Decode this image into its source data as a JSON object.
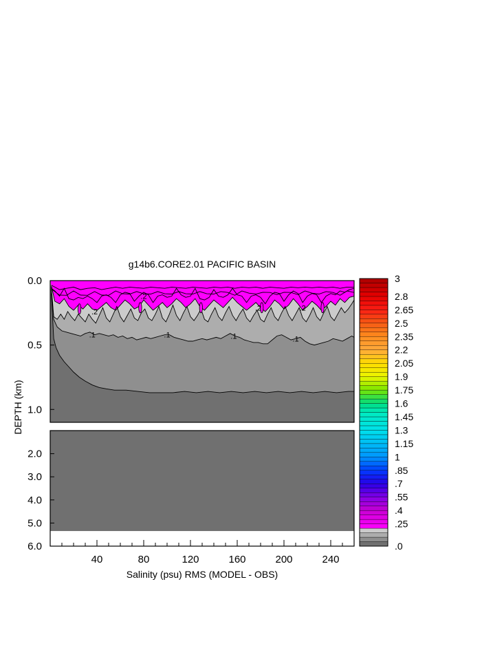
{
  "chart_data": {
    "type": "heatmap",
    "title": "g14b6.CORE2.01 PACIFIC BASIN",
    "xlabel": "Salinity (psu) RMS (MODEL - OBS)",
    "ylabel": "DEPTH (km)",
    "xlim": [
      0,
      260
    ],
    "x_ticks": [
      "40",
      "80",
      "120",
      "160",
      "200",
      "240"
    ],
    "x_tick_values": [
      40,
      80,
      120,
      160,
      200,
      240
    ],
    "upper_panel": {
      "ylim": [
        0.0,
        1.1
      ],
      "y_ticks": [
        "0.0",
        "0.5",
        "1.0"
      ],
      "y_tick_values": [
        0.0,
        0.5,
        1.0
      ]
    },
    "lower_panel": {
      "ylim": [
        1.0,
        6.0
      ],
      "y_ticks": [
        "2.0",
        "3.0",
        "4.0",
        "5.0",
        "6.0"
      ],
      "y_tick_values": [
        2.0,
        3.0,
        4.0,
        5.0,
        6.0
      ],
      "bottom_depth": 5.35
    },
    "contour_labels": [
      {
        "text": ".2",
        "x": 38,
        "depth": 0.24
      },
      {
        "text": ".2",
        "x": 80,
        "depth": 0.12
      },
      {
        "text": ".2",
        "x": 178,
        "depth": 0.21
      },
      {
        "text": ".2",
        "x": 216,
        "depth": 0.21
      },
      {
        "text": ".1",
        "x": 36,
        "depth": 0.42
      },
      {
        "text": ".1",
        "x": 100,
        "depth": 0.42
      },
      {
        "text": ".1",
        "x": 157,
        "depth": 0.43
      },
      {
        "text": ".1",
        "x": 210,
        "depth": 0.45
      }
    ],
    "contour_levels": {
      "c04": [
        [
          1,
          0.035
        ],
        [
          8,
          0.07
        ],
        [
          14,
          0.06
        ],
        [
          20,
          0.05
        ],
        [
          26,
          0.07
        ],
        [
          32,
          0.06
        ],
        [
          38,
          0.055
        ],
        [
          44,
          0.07
        ],
        [
          50,
          0.06
        ],
        [
          56,
          0.05
        ],
        [
          62,
          0.06
        ],
        [
          68,
          0.05
        ],
        [
          74,
          0.055
        ],
        [
          80,
          0.06
        ],
        [
          86,
          0.05
        ],
        [
          92,
          0.055
        ],
        [
          98,
          0.06
        ],
        [
          104,
          0.05
        ],
        [
          110,
          0.055
        ],
        [
          116,
          0.06
        ],
        [
          122,
          0.05
        ],
        [
          128,
          0.055
        ],
        [
          134,
          0.06
        ],
        [
          140,
          0.05
        ],
        [
          146,
          0.055
        ],
        [
          152,
          0.05
        ],
        [
          158,
          0.06
        ],
        [
          164,
          0.05
        ],
        [
          170,
          0.055
        ],
        [
          176,
          0.05
        ],
        [
          182,
          0.06
        ],
        [
          188,
          0.05
        ],
        [
          194,
          0.055
        ],
        [
          200,
          0.06
        ],
        [
          206,
          0.05
        ],
        [
          212,
          0.055
        ],
        [
          218,
          0.05
        ],
        [
          224,
          0.055
        ],
        [
          230,
          0.05
        ],
        [
          236,
          0.055
        ],
        [
          242,
          0.05
        ],
        [
          248,
          0.06
        ],
        [
          254,
          0.05
        ],
        [
          260,
          0.05
        ]
      ],
      "c02": [
        [
          1,
          0.04
        ],
        [
          4,
          0.16
        ],
        [
          8,
          0.18
        ],
        [
          12,
          0.14
        ],
        [
          16,
          0.2
        ],
        [
          20,
          0.23
        ],
        [
          24,
          0.19
        ],
        [
          28,
          0.22
        ],
        [
          32,
          0.18
        ],
        [
          36,
          0.22
        ],
        [
          40,
          0.23
        ],
        [
          44,
          0.2
        ],
        [
          48,
          0.17
        ],
        [
          52,
          0.21
        ],
        [
          56,
          0.23
        ],
        [
          60,
          0.19
        ],
        [
          64,
          0.15
        ],
        [
          68,
          0.18
        ],
        [
          72,
          0.22
        ],
        [
          76,
          0.2
        ],
        [
          80,
          0.15
        ],
        [
          84,
          0.19
        ],
        [
          88,
          0.23
        ],
        [
          92,
          0.2
        ],
        [
          96,
          0.17
        ],
        [
          100,
          0.21
        ],
        [
          104,
          0.18
        ],
        [
          108,
          0.14
        ],
        [
          112,
          0.17
        ],
        [
          116,
          0.21
        ],
        [
          120,
          0.18
        ],
        [
          124,
          0.14
        ],
        [
          128,
          0.2
        ],
        [
          132,
          0.23
        ],
        [
          136,
          0.19
        ],
        [
          140,
          0.15
        ],
        [
          144,
          0.18
        ],
        [
          148,
          0.21
        ],
        [
          152,
          0.17
        ],
        [
          156,
          0.13
        ],
        [
          160,
          0.17
        ],
        [
          164,
          0.2
        ],
        [
          168,
          0.23
        ],
        [
          172,
          0.2
        ],
        [
          176,
          0.17
        ],
        [
          180,
          0.21
        ],
        [
          184,
          0.24
        ],
        [
          188,
          0.2
        ],
        [
          192,
          0.15
        ],
        [
          196,
          0.18
        ],
        [
          200,
          0.22
        ],
        [
          204,
          0.19
        ],
        [
          208,
          0.14
        ],
        [
          212,
          0.18
        ],
        [
          216,
          0.23
        ],
        [
          220,
          0.2
        ],
        [
          224,
          0.16
        ],
        [
          228,
          0.19
        ],
        [
          232,
          0.23
        ],
        [
          236,
          0.2
        ],
        [
          240,
          0.16
        ],
        [
          244,
          0.19
        ],
        [
          248,
          0.14
        ],
        [
          252,
          0.17
        ],
        [
          256,
          0.13
        ],
        [
          260,
          0.12
        ]
      ],
      "c015": [
        [
          1,
          0.05
        ],
        [
          3,
          0.28
        ],
        [
          6,
          0.3
        ],
        [
          9,
          0.26
        ],
        [
          12,
          0.3
        ],
        [
          15,
          0.24
        ],
        [
          18,
          0.28
        ],
        [
          21,
          0.31
        ],
        [
          24,
          0.26
        ],
        [
          27,
          0.29
        ],
        [
          30,
          0.32
        ],
        [
          33,
          0.26
        ],
        [
          36,
          0.3
        ],
        [
          39,
          0.33
        ],
        [
          42,
          0.27
        ],
        [
          45,
          0.21
        ],
        [
          48,
          0.29
        ],
        [
          51,
          0.32
        ],
        [
          54,
          0.26
        ],
        [
          57,
          0.2
        ],
        [
          60,
          0.28
        ],
        [
          63,
          0.32
        ],
        [
          66,
          0.27
        ],
        [
          69,
          0.22
        ],
        [
          72,
          0.29
        ],
        [
          75,
          0.31
        ],
        [
          78,
          0.25
        ],
        [
          81,
          0.22
        ],
        [
          84,
          0.29
        ],
        [
          87,
          0.31
        ],
        [
          90,
          0.26
        ],
        [
          93,
          0.2
        ],
        [
          96,
          0.29
        ],
        [
          99,
          0.32
        ],
        [
          102,
          0.26
        ],
        [
          105,
          0.19
        ],
        [
          108,
          0.27
        ],
        [
          111,
          0.31
        ],
        [
          114,
          0.25
        ],
        [
          117,
          0.2
        ],
        [
          120,
          0.28
        ],
        [
          123,
          0.31
        ],
        [
          126,
          0.27
        ],
        [
          129,
          0.22
        ],
        [
          132,
          0.3
        ],
        [
          135,
          0.32
        ],
        [
          138,
          0.26
        ],
        [
          141,
          0.21
        ],
        [
          144,
          0.28
        ],
        [
          147,
          0.31
        ],
        [
          150,
          0.25
        ],
        [
          153,
          0.2
        ],
        [
          156,
          0.27
        ],
        [
          159,
          0.31
        ],
        [
          162,
          0.26
        ],
        [
          165,
          0.22
        ],
        [
          168,
          0.29
        ],
        [
          171,
          0.32
        ],
        [
          174,
          0.27
        ],
        [
          177,
          0.23
        ],
        [
          180,
          0.3
        ],
        [
          183,
          0.32
        ],
        [
          186,
          0.26
        ],
        [
          189,
          0.21
        ],
        [
          192,
          0.28
        ],
        [
          195,
          0.31
        ],
        [
          198,
          0.25
        ],
        [
          201,
          0.2
        ],
        [
          204,
          0.27
        ],
        [
          207,
          0.31
        ],
        [
          210,
          0.26
        ],
        [
          213,
          0.21
        ],
        [
          216,
          0.29
        ],
        [
          219,
          0.32
        ],
        [
          222,
          0.27
        ],
        [
          225,
          0.21
        ],
        [
          228,
          0.28
        ],
        [
          231,
          0.31
        ],
        [
          234,
          0.25
        ],
        [
          237,
          0.2
        ],
        [
          240,
          0.28
        ],
        [
          243,
          0.31
        ],
        [
          246,
          0.26
        ],
        [
          249,
          0.21
        ],
        [
          252,
          0.25
        ],
        [
          255,
          0.22
        ],
        [
          258,
          0.18
        ],
        [
          260,
          0.15
        ]
      ],
      "c01": [
        [
          1,
          0.07
        ],
        [
          3,
          0.3
        ],
        [
          6,
          0.36
        ],
        [
          10,
          0.39
        ],
        [
          14,
          0.4
        ],
        [
          18,
          0.41
        ],
        [
          22,
          0.42
        ],
        [
          26,
          0.43
        ],
        [
          30,
          0.41
        ],
        [
          34,
          0.4
        ],
        [
          38,
          0.42
        ],
        [
          42,
          0.41
        ],
        [
          46,
          0.42
        ],
        [
          50,
          0.43
        ],
        [
          54,
          0.42
        ],
        [
          58,
          0.44
        ],
        [
          62,
          0.43
        ],
        [
          66,
          0.45
        ],
        [
          70,
          0.44
        ],
        [
          74,
          0.46
        ],
        [
          78,
          0.45
        ],
        [
          82,
          0.44
        ],
        [
          86,
          0.45
        ],
        [
          90,
          0.44
        ],
        [
          94,
          0.43
        ],
        [
          98,
          0.42
        ],
        [
          102,
          0.42
        ],
        [
          106,
          0.44
        ],
        [
          110,
          0.45
        ],
        [
          114,
          0.46
        ],
        [
          118,
          0.47
        ],
        [
          122,
          0.47
        ],
        [
          126,
          0.46
        ],
        [
          130,
          0.45
        ],
        [
          134,
          0.46
        ],
        [
          138,
          0.45
        ],
        [
          142,
          0.44
        ],
        [
          146,
          0.45
        ],
        [
          150,
          0.43
        ],
        [
          154,
          0.41
        ],
        [
          158,
          0.43
        ],
        [
          162,
          0.44
        ],
        [
          166,
          0.46
        ],
        [
          170,
          0.47
        ],
        [
          174,
          0.48
        ],
        [
          178,
          0.48
        ],
        [
          182,
          0.49
        ],
        [
          186,
          0.49
        ],
        [
          190,
          0.46
        ],
        [
          194,
          0.43
        ],
        [
          198,
          0.42
        ],
        [
          202,
          0.44
        ],
        [
          206,
          0.46
        ],
        [
          210,
          0.45
        ],
        [
          214,
          0.44
        ],
        [
          218,
          0.47
        ],
        [
          222,
          0.49
        ],
        [
          226,
          0.5
        ],
        [
          230,
          0.49
        ],
        [
          234,
          0.48
        ],
        [
          238,
          0.47
        ],
        [
          242,
          0.45
        ],
        [
          246,
          0.46
        ],
        [
          250,
          0.47
        ],
        [
          254,
          0.45
        ],
        [
          258,
          0.43
        ],
        [
          260,
          0.44
        ]
      ],
      "c005": [
        [
          1,
          0.1
        ],
        [
          3,
          0.45
        ],
        [
          5,
          0.52
        ],
        [
          8,
          0.58
        ],
        [
          12,
          0.63
        ],
        [
          16,
          0.67
        ],
        [
          20,
          0.71
        ],
        [
          25,
          0.75
        ],
        [
          30,
          0.78
        ],
        [
          36,
          0.81
        ],
        [
          42,
          0.83
        ],
        [
          48,
          0.84
        ],
        [
          55,
          0.85
        ],
        [
          65,
          0.85
        ],
        [
          75,
          0.86
        ],
        [
          85,
          0.87
        ],
        [
          95,
          0.87
        ],
        [
          105,
          0.87
        ],
        [
          115,
          0.86
        ],
        [
          125,
          0.87
        ],
        [
          135,
          0.86
        ],
        [
          145,
          0.87
        ],
        [
          155,
          0.86
        ],
        [
          165,
          0.87
        ],
        [
          175,
          0.86
        ],
        [
          185,
          0.87
        ],
        [
          195,
          0.86
        ],
        [
          205,
          0.87
        ],
        [
          215,
          0.86
        ],
        [
          225,
          0.87
        ],
        [
          235,
          0.86
        ],
        [
          245,
          0.87
        ],
        [
          255,
          0.86
        ],
        [
          260,
          0.86
        ]
      ]
    },
    "small_features": [
      {
        "x": 25,
        "depth": 0.22,
        "level": ".2"
      },
      {
        "x": 77,
        "depth": 0.21,
        "level": ".2"
      },
      {
        "x": 129,
        "depth": 0.21,
        "level": ".2"
      },
      {
        "x": 181,
        "depth": 0.21,
        "level": ".2"
      },
      {
        "x": 233,
        "depth": 0.21,
        "level": ".2"
      }
    ],
    "colorbar": {
      "labels": [
        "3",
        "2.8",
        "2.65",
        "2.5",
        "2.35",
        "2.2",
        "2.05",
        "1.9",
        "1.75",
        "1.6",
        "1.45",
        "1.3",
        "1.15",
        "1",
        ".85",
        ".7",
        ".55",
        ".4",
        ".25",
        ".0"
      ],
      "label_values": [
        3.0,
        2.8,
        2.65,
        2.5,
        2.35,
        2.2,
        2.05,
        1.9,
        1.75,
        1.6,
        1.45,
        1.3,
        1.15,
        1.0,
        0.85,
        0.7,
        0.55,
        0.4,
        0.25,
        0.0
      ],
      "min": 0.0,
      "max": 3.0,
      "colors": {
        "dark_gray": "#707070",
        "mid_gray": "#8f8f8f",
        "light_gray": "#adadad",
        "pale_gray": "#cbcbcb",
        "white": "#ffffff",
        "magenta": "#ff00ff"
      }
    }
  }
}
